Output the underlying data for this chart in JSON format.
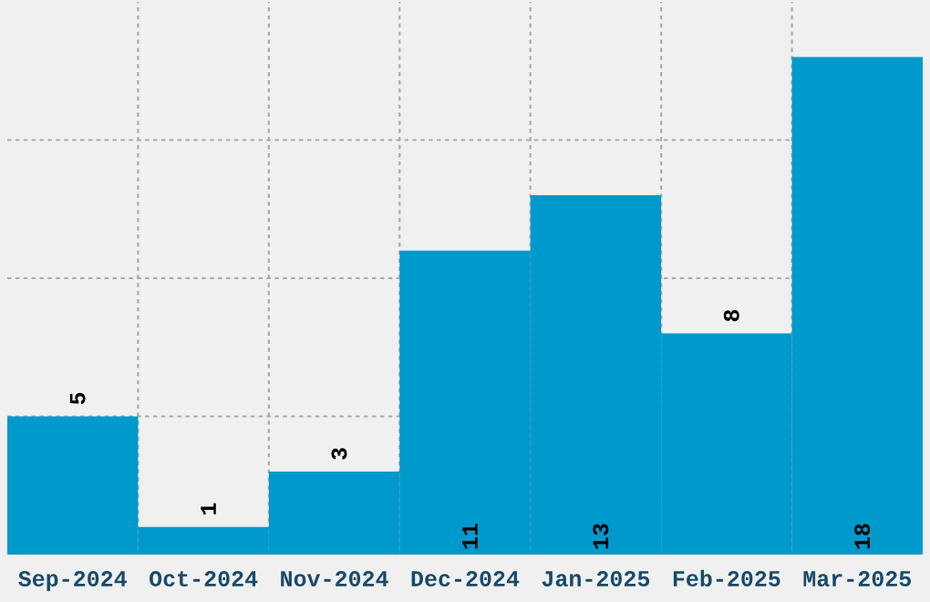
{
  "chart_data": {
    "type": "bar",
    "categories": [
      "Sep-2024",
      "Oct-2024",
      "Nov-2024",
      "Dec-2024",
      "Jan-2025",
      "Feb-2025",
      "Mar-2025"
    ],
    "values": [
      5,
      1,
      3,
      11,
      13,
      8,
      18
    ],
    "color": "#0099cc",
    "ylim": [
      0,
      20
    ],
    "yticks": [
      {
        "value": 5,
        "label": null
      },
      {
        "value": 10,
        "label": null
      },
      {
        "value": 15,
        "label": null
      }
    ],
    "tick_labels": "x",
    "grid": true,
    "data_labels": true
  }
}
